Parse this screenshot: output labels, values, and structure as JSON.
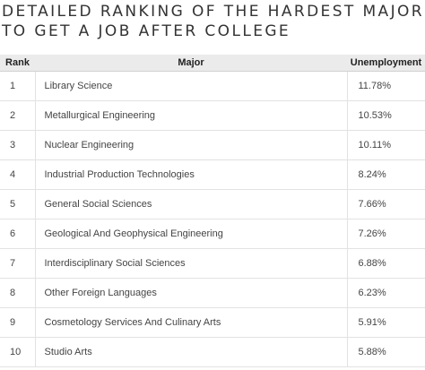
{
  "title": {
    "line1": "DETAILED RANKING OF THE HARDEST MAJORS",
    "line2": "TO GET A JOB AFTER COLLEGE"
  },
  "table": {
    "headers": {
      "rank": "Rank",
      "major": "Major",
      "unemployment": "Unemployment"
    },
    "rows": [
      {
        "rank": "1",
        "major": "Library Science",
        "unemployment": "11.78%"
      },
      {
        "rank": "2",
        "major": "Metallurgical Engineering",
        "unemployment": "10.53%"
      },
      {
        "rank": "3",
        "major": "Nuclear Engineering",
        "unemployment": "10.11%"
      },
      {
        "rank": "4",
        "major": "Industrial Production Technologies",
        "unemployment": "8.24%"
      },
      {
        "rank": "5",
        "major": "General Social Sciences",
        "unemployment": "7.66%"
      },
      {
        "rank": "6",
        "major": "Geological And Geophysical Engineering",
        "unemployment": "7.26%"
      },
      {
        "rank": "7",
        "major": "Interdisciplinary Social Sciences",
        "unemployment": "6.88%"
      },
      {
        "rank": "8",
        "major": "Other Foreign Languages",
        "unemployment": "6.23%"
      },
      {
        "rank": "9",
        "major": "Cosmetology Services And Culinary Arts",
        "unemployment": "5.91%"
      },
      {
        "rank": "10",
        "major": "Studio Arts",
        "unemployment": "5.88%"
      }
    ]
  }
}
